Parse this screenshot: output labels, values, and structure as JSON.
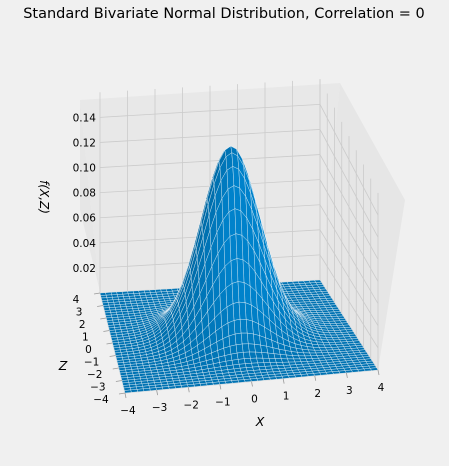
{
  "chart_data": {
    "type": "surface3d",
    "title": "Standard Bivariate Normal Distribution, Correlation = 0",
    "xlabel": "X",
    "ylabel": "Z",
    "zlabel": "f(X,Z)",
    "correlation": 0,
    "x_range": [
      -4,
      4
    ],
    "z_range": [
      -4,
      4
    ],
    "f_range": [
      0,
      0.16
    ],
    "peak_value": 0.159,
    "x_ticks": [
      "−4",
      "−3",
      "−2",
      "−1",
      "0",
      "1",
      "2",
      "3",
      "4"
    ],
    "y_ticks": [
      "−4",
      "−3",
      "−2",
      "−1",
      "0",
      "1",
      "2",
      "3",
      "4"
    ],
    "z_ticks": [
      "0.02",
      "0.04",
      "0.06",
      "0.08",
      "0.10",
      "0.12",
      "0.14"
    ],
    "grid": true,
    "colors": {
      "background": "#ffffff",
      "pane": "#f0f0f0",
      "surface": "#0072b2",
      "mesh": "#ffffff",
      "grid": "#cbcbcb"
    }
  }
}
